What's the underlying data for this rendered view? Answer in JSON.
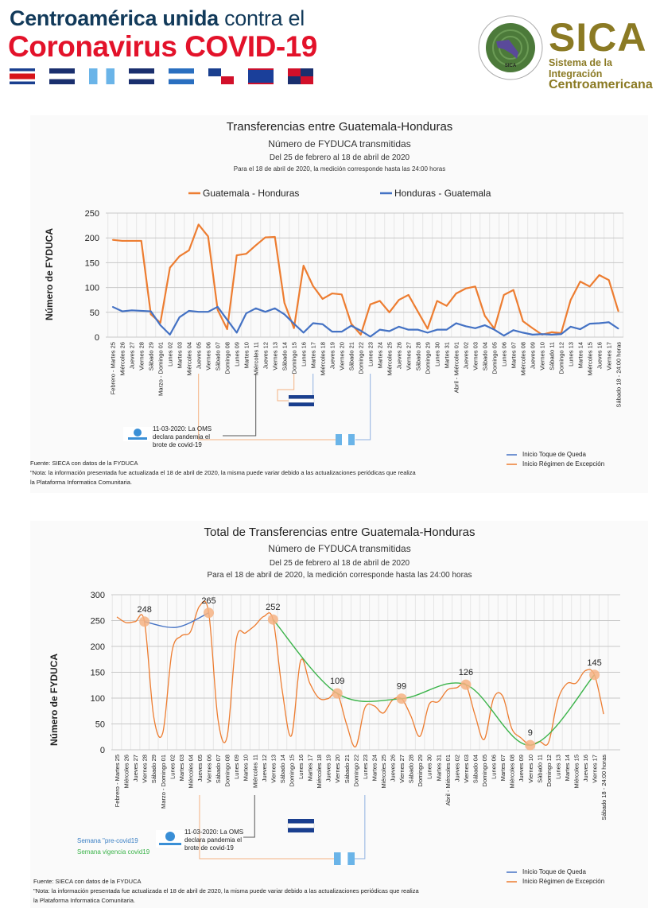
{
  "header": {
    "line1_bold": "Centroamérica unida",
    "line1_light": "contra el",
    "line2": "Coronavirus COVID-19",
    "flags": [
      "costa-rica",
      "el-salvador",
      "guatemala",
      "honduras",
      "nicaragua",
      "panama",
      "belize",
      "dominican-republic"
    ]
  },
  "sica": {
    "title": "SICA",
    "subtitle1": "Sistema de la Integración",
    "subtitle2": "Centroamericana",
    "seal_text": [
      "DESARROLLO",
      "LIBERTAD",
      "DEMOCRACIA",
      "PAZ",
      "SISTEMA DE LA INTEGRACIÓN CENTROAMERICANA",
      "SICA"
    ]
  },
  "colors": {
    "orange": "#ed7d31",
    "blue": "#4472c4",
    "green": "#3cb44b",
    "peach": "#f4b183"
  },
  "annotations": {
    "who_text": [
      "11-03-2020: La OMS",
      "declara pandemia el",
      "brote de covid-19"
    ],
    "legend_curfew": "Inicio Toque de Queda",
    "legend_exception": "Inicio Régimen de Excepción",
    "week_pre": "Semana \"pre-covid19",
    "week_covid": "Semana vigencia covid19",
    "source": "Fuente: SIECA con datos de la FYDUCA",
    "note1": "\"Nota: la información presentada fue actualizada el 18 de abril de 2020, la misma puede variar debido a las actualizaciones periódicas que realiza",
    "note2": "la Plataforma Informatica Comunitaria."
  },
  "chart_data": [
    {
      "type": "line",
      "title": "Transferencias entre Guatemala-Honduras",
      "subtitle": "Número de FYDUCA transmitidas",
      "period": "Del 25 de febrero al 18 de abril de 2020",
      "note": "Para el 18 de abril de 2020, la medición corresponde hasta las 24:00 horas",
      "ylabel": "Número de FYDUCA",
      "xlabel": "",
      "ylim": [
        0,
        250
      ],
      "yticks": [
        0,
        50,
        100,
        150,
        200,
        250
      ],
      "grid": true,
      "legend": "top",
      "categories": [
        "Febrero - Martes 25",
        "Miércoles 26",
        "Jueves 27",
        "Viernes 28",
        "Sábado 29",
        "Marzo - Domingo 01",
        "Lunes 02",
        "Martes 03",
        "Miércoles 04",
        "Jueves 05",
        "Viernes 06",
        "Sábado 07",
        "Domingo 08",
        "Lunes 09",
        "Martes 10",
        "Miércoles 11",
        "Jueves 12",
        "Viernes 13",
        "Sábado 14",
        "Domingo 15",
        "Lunes 16",
        "Martes 17",
        "Miércoles 18",
        "Jueves 19",
        "Viernes 20",
        "Sábado 21",
        "Domingo 22",
        "Lunes 23",
        "Martes 24",
        "Miércoles 25",
        "Jueves 26",
        "Viernes 27",
        "Sábado 28",
        "Domingo 29",
        "Lunes 30",
        "Martes 31",
        "Abril - Miércoles 01",
        "Jueves 02",
        "Viernes 03",
        "Sábado 04",
        "Domingo 05",
        "Lunes 06",
        "Martes 07",
        "Miércoles 08",
        "Jueves 09",
        "Viernes 10",
        "Sábado 11",
        "Domingo 12",
        "Lunes 13",
        "Martes 14",
        "Miércoles 15",
        "Jueves 16",
        "Viernes 17",
        "Sábado 18 - 24:00 horas"
      ],
      "series": [
        {
          "name": "Guatemala - Honduras",
          "color": "#ed7d31",
          "values": [
            196,
            194,
            194,
            194,
            46,
            29,
            140,
            163,
            175,
            227,
            203,
            55,
            16,
            165,
            168,
            185,
            201,
            202,
            69,
            18,
            144,
            103,
            77,
            88,
            86,
            27,
            5,
            66,
            73,
            50,
            75,
            85,
            51,
            17,
            73,
            63,
            88,
            98,
            102,
            43,
            17,
            85,
            95,
            32,
            18,
            5,
            10,
            8,
            75,
            112,
            102,
            125,
            115,
            52
          ]
        },
        {
          "name": "Honduras - Guatemala",
          "color": "#4472c4",
          "values": [
            61,
            52,
            54,
            53,
            52,
            24,
            5,
            40,
            53,
            51,
            51,
            61,
            35,
            9,
            48,
            58,
            51,
            58,
            46,
            27,
            9,
            28,
            26,
            11,
            11,
            23,
            13,
            1,
            15,
            12,
            21,
            15,
            15,
            9,
            15,
            15,
            28,
            22,
            18,
            24,
            15,
            3,
            14,
            9,
            5,
            6,
            5,
            6,
            21,
            16,
            27,
            28,
            30,
            17
          ]
        }
      ]
    },
    {
      "type": "line",
      "title": "Total de Transferencias entre Guatemala-Honduras",
      "subtitle": "Número de FYDUCA transmitidas",
      "period": "Del 25 de febrero al 18 de abril de 2020",
      "note": "Para el 18 de abril de 2020, la medición corresponde hasta las 24:00 horas",
      "ylabel": "Número de  FYDUCA",
      "xlabel": "",
      "ylim": [
        0,
        300
      ],
      "yticks": [
        0,
        50,
        100,
        150,
        200,
        250,
        300
      ],
      "grid": true,
      "categories": [
        "Febrero - Martes 25",
        "Miércoles 26",
        "Jueves 27",
        "Viernes 28",
        "Sábado 29",
        "Marzo - Domingo 01",
        "Lunes 02",
        "Martes 03",
        "Miércoles 04",
        "Jueves 05",
        "Viernes 06",
        "Sábado 07",
        "Domingo 08",
        "Lunes 09",
        "Martes 10",
        "Miércoles 11",
        "Jueves 12",
        "Viernes 13",
        "Sábado 14",
        "Domingo 15",
        "Lunes 16",
        "Martes 17",
        "Miércoles 18",
        "Jueves 19",
        "Viernes 20",
        "Sábado 21",
        "Domingo 22",
        "Lunes 23",
        "Martes 24",
        "Miércoles 25",
        "Jueves 26",
        "Viernes 27",
        "Sábado 28",
        "Domingo 29",
        "Lunes 30",
        "Martes 31",
        "Abril - Miércoles 01",
        "Jueves 02",
        "Viernes 03",
        "Sábado 04",
        "Domingo 05",
        "Lunes 06",
        "Martes 07",
        "Miércoles 08",
        "Jueves 09",
        "Viernes 10",
        "Sábado 11",
        "Domingo 12",
        "Lunes 13",
        "Martes 14",
        "Miércoles 15",
        "Jueves 16",
        "Viernes 17",
        "Sábado 18 - 24:00 horas"
      ],
      "series": [
        {
          "name": "Total",
          "color": "#ed7d31",
          "values": [
            257,
            246,
            248,
            248,
            65,
            33,
            190,
            220,
            228,
            278,
            265,
            60,
            25,
            213,
            226,
            240,
            258,
            252,
            115,
            27,
            172,
            129,
            100,
            99,
            109,
            50,
            6,
            81,
            85,
            71,
            96,
            99,
            66,
            26,
            88,
            93,
            116,
            120,
            126,
            67,
            20,
            99,
            104,
            41,
            23,
            9,
            16,
            14,
            96,
            128,
            129,
            153,
            145,
            69
          ]
        }
      ],
      "highlighted": [
        {
          "index": 3,
          "label": "248"
        },
        {
          "index": 10,
          "label": "265"
        },
        {
          "index": 17,
          "label": "252"
        },
        {
          "index": 24,
          "label": "109"
        },
        {
          "index": 31,
          "label": "99"
        },
        {
          "index": 38,
          "label": "126"
        },
        {
          "index": 45,
          "label": "9"
        },
        {
          "index": 52,
          "label": "145"
        }
      ],
      "trendlines": [
        {
          "name": "Semana \"pre-covid19",
          "color": "#4472c4",
          "points": [
            [
              3,
              248
            ],
            [
              6.5,
              237
            ],
            [
              10,
              265
            ]
          ]
        },
        {
          "name": "Semana vigencia covid19",
          "color": "#3cb44b",
          "points": [
            [
              17,
              252
            ],
            [
              24,
              109
            ],
            [
              31,
              99
            ],
            [
              38,
              126
            ],
            [
              45,
              9
            ],
            [
              52,
              145
            ]
          ]
        }
      ]
    }
  ]
}
